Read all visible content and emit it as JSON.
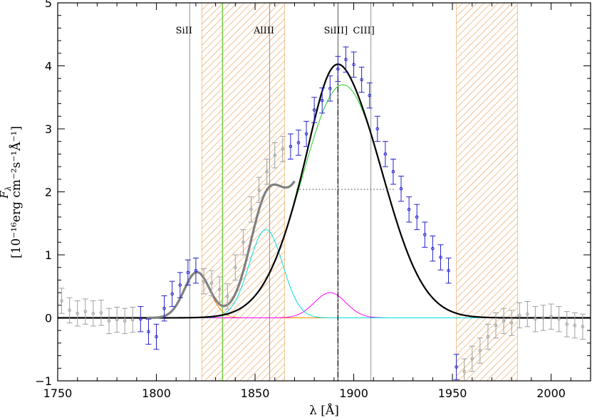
{
  "chart_data": {
    "type": "line",
    "title": "",
    "xlabel": "λ [Å]",
    "ylabel_symbol": "F",
    "ylabel_subscript": "λ",
    "ylabel_units": "[10⁻¹⁶erg cm⁻²s⁻¹Å⁻¹]",
    "xlim": [
      1750,
      2020
    ],
    "ylim": [
      -1.0,
      5.0
    ],
    "xticks": [
      1750,
      1800,
      1850,
      1900,
      1950,
      2000
    ],
    "yticks": [
      -1,
      0,
      1,
      2,
      3,
      4,
      5
    ],
    "xtick_labels": [
      "1750",
      "1800",
      "1850",
      "1900",
      "1950",
      "2000"
    ],
    "ytick_labels": [
      "−1",
      "0",
      "1",
      "2",
      "3",
      "4",
      "5"
    ],
    "grid": false,
    "colors": {
      "fit_data": "#2222cc",
      "masked_data": "#a0a0a0",
      "total_model": "#000000",
      "blend_model": "#808080",
      "ciii_component": "#22cc22",
      "aliii_component": "#00dddd",
      "siii_component": "#ff00ff",
      "siii_1816_component": "#ff8800",
      "mask_hatch": "#e8a058",
      "green_marker": "#66cc33"
    },
    "masked_regions": [
      [
        1823,
        1865
      ],
      [
        1952,
        1983
      ]
    ],
    "emission_lines": [
      {
        "label": "SiII",
        "x": 1816.9
      },
      {
        "label": "AlIII",
        "x": 1857.4
      },
      {
        "label": "SiIII]",
        "x": 1892.0
      },
      {
        "label": "CIII]",
        "x": 1908.7
      }
    ],
    "vertical_marker_x": 1833.5,
    "centroid_line_x": 1892.0,
    "fwhm_segment": {
      "x1": 1871,
      "x2": 1921,
      "y": 2.04
    },
    "components": [
      {
        "id": "ciii",
        "amp": 3.7,
        "center": 1894.5,
        "sigma": 20.5
      },
      {
        "id": "aliii",
        "amp": 1.4,
        "center": 1855.5,
        "sigma": 8.5
      },
      {
        "id": "siii",
        "amp": 0.4,
        "center": 1888.0,
        "sigma": 8.0
      },
      {
        "id": "siii_1816",
        "amp": 0.72,
        "center": 1820.5,
        "sigma": 6.5
      }
    ],
    "series": [
      {
        "x": [
          1752,
          1756,
          1760,
          1764,
          1768,
          1772,
          1776,
          1780,
          1784,
          1788,
          1792,
          1796,
          1800,
          1804,
          1808,
          1812,
          1816,
          1820,
          1824,
          1828,
          1832,
          1836,
          1840,
          1844,
          1848,
          1852,
          1856,
          1860,
          1864,
          1868,
          1872,
          1876,
          1880,
          1884,
          1888,
          1892,
          1896,
          1900,
          1904,
          1908,
          1912,
          1916,
          1920,
          1924,
          1928,
          1932,
          1936,
          1940,
          1944,
          1948,
          1952,
          1956,
          1960,
          1964,
          1968,
          1972,
          1976,
          1980,
          1984,
          1988,
          1992,
          1996,
          2000,
          2004,
          2008,
          2012,
          2016
        ],
        "y": [
          0.27,
          0.12,
          0.07,
          0.1,
          0.07,
          0.08,
          -0.05,
          -0.03,
          -0.05,
          -0.03,
          -0.02,
          -0.22,
          -0.3,
          0.15,
          0.38,
          0.52,
          0.72,
          0.75,
          0.58,
          0.55,
          0.45,
          0.34,
          0.8,
          1.2,
          1.72,
          2.03,
          2.32,
          2.58,
          2.68,
          2.72,
          2.78,
          2.92,
          3.3,
          3.45,
          3.64,
          3.95,
          4.1,
          4.02,
          3.78,
          3.53,
          3.0,
          2.6,
          2.32,
          2.05,
          1.72,
          1.6,
          1.32,
          1.1,
          0.96,
          0.75,
          -0.78,
          -0.85,
          -0.65,
          -0.52,
          -0.3,
          -0.12,
          -0.05,
          -0.08,
          0.04,
          0.06,
          -0.02,
          0.0,
          0.02,
          -0.02,
          -0.1,
          -0.12,
          -0.14
        ],
        "err": [
          0.2,
          0.2,
          0.2,
          0.2,
          0.2,
          0.2,
          0.2,
          0.2,
          0.2,
          0.2,
          0.2,
          0.2,
          0.2,
          0.2,
          0.2,
          0.2,
          0.2,
          0.2,
          0.2,
          0.2,
          0.2,
          0.2,
          0.2,
          0.2,
          0.2,
          0.2,
          0.2,
          0.2,
          0.2,
          0.2,
          0.2,
          0.2,
          0.2,
          0.2,
          0.2,
          0.2,
          0.2,
          0.2,
          0.2,
          0.2,
          0.2,
          0.2,
          0.2,
          0.2,
          0.2,
          0.2,
          0.2,
          0.2,
          0.2,
          0.2,
          0.2,
          0.2,
          0.2,
          0.2,
          0.2,
          0.2,
          0.2,
          0.2,
          0.2,
          0.2,
          0.2,
          0.2,
          0.2,
          0.2,
          0.2,
          0.2,
          0.2
        ]
      }
    ]
  }
}
